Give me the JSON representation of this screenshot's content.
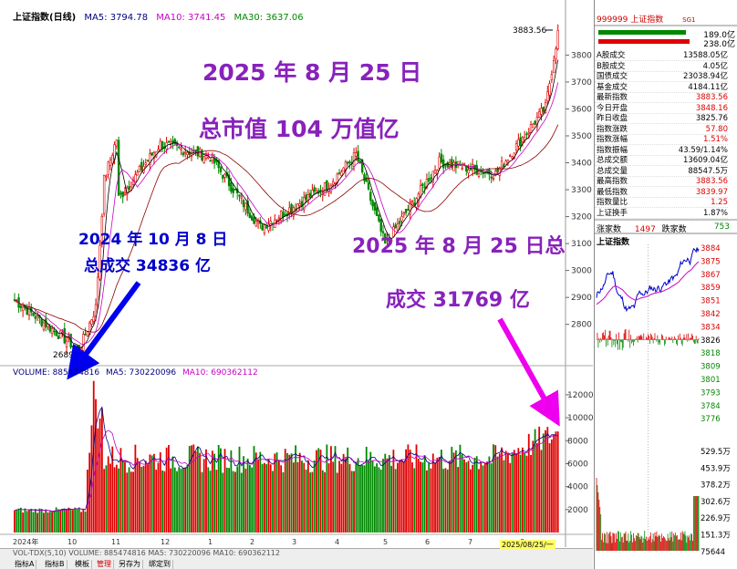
{
  "header": {
    "title": "上证指数(日线)",
    "ma5": "MA5: 3794.78",
    "ma10": "MA10: 3741.45",
    "ma30": "MA30: 3637.06",
    "peak_label": "3883.56",
    "low_label": "2689"
  },
  "volume_header": {
    "volume": "VOLUME: 885474816",
    "ma5": "MA5: 730220096",
    "ma10": "MA10: 690362112"
  },
  "annotations": {
    "date_title": "2025 年 8 月 25 日",
    "market_cap": "总市值 104 万值亿",
    "oct_date": "2024 年 10 月 8 日",
    "oct_volume": "总成交 34836 亿",
    "aug_line1": "2025 年 8 月 25 日总",
    "aug_line2": "成交 31769 亿"
  },
  "chart_data": {
    "type": "candlestick",
    "title": "上证指数(日线)",
    "price_axis": [
      2800,
      2900,
      3000,
      3100,
      3200,
      3300,
      3400,
      3500,
      3600,
      3700,
      3800
    ],
    "volume_axis": [
      2000,
      4000,
      6000,
      8000,
      10000,
      12000
    ],
    "x_ticks": [
      "2024年",
      "10",
      "11",
      "12",
      "1",
      "2",
      "3",
      "4",
      "5",
      "6",
      "7",
      "8"
    ],
    "ylim": [
      2650,
      3930
    ],
    "series_close_key_points": [
      {
        "date": "2024-09-13",
        "close": 2704
      },
      {
        "date": "2024-09-24",
        "close": 2863
      },
      {
        "date": "2024-09-30",
        "close": 3336
      },
      {
        "date": "2024-10-08",
        "close": 3489
      },
      {
        "date": "2024-10-09",
        "close": 3258
      },
      {
        "date": "2024-11-07",
        "close": 3470
      },
      {
        "date": "2024-12-10",
        "close": 3422
      },
      {
        "date": "2025-01-13",
        "close": 3160
      },
      {
        "date": "2025-02-28",
        "close": 3320
      },
      {
        "date": "2025-03-18",
        "close": 3430
      },
      {
        "date": "2025-04-07",
        "close": 3096
      },
      {
        "date": "2025-05-14",
        "close": 3403
      },
      {
        "date": "2025-06-20",
        "close": 3359
      },
      {
        "date": "2025-07-24",
        "close": 3605
      },
      {
        "date": "2025-08-25",
        "close": 3883
      }
    ],
    "volume_key_points": [
      {
        "date": "2024-10-08",
        "volume_yi": 34836
      },
      {
        "date": "2025-08-25",
        "volume_yi": 31769
      }
    ],
    "ma_lines": [
      "MA5",
      "MA10",
      "MA30"
    ]
  },
  "bottom_tabs": [
    "指标A",
    "指标B",
    "模板",
    "管理",
    "另存为",
    "绑定到"
  ],
  "vol_footer": "VOL-TDX(5,10)   VOLUME: 885474816  MA5: 730220096  MA10: 690362112",
  "date_tag": "2025/08/25/一",
  "sidepanel": {
    "code": "999999",
    "name": "上证指数",
    "tag": "SG1",
    "bar_vals": [
      "189.0亿",
      "238.0亿"
    ],
    "rows": [
      {
        "label": "A股成交",
        "value": "13588.05亿",
        "color": "black"
      },
      {
        "label": "B股成交",
        "value": "4.05亿",
        "color": "black"
      },
      {
        "label": "国债成交",
        "value": "23038.94亿",
        "color": "black"
      },
      {
        "label": "基金成交",
        "value": "4184.11亿",
        "color": "black"
      },
      {
        "label": "最新指数",
        "value": "3883.56",
        "color": "red"
      },
      {
        "label": "今日开盘",
        "value": "3848.16",
        "color": "red"
      },
      {
        "label": "昨日收盘",
        "value": "3825.76",
        "color": "black"
      },
      {
        "label": "指数涨跌",
        "value": "57.80",
        "color": "red"
      },
      {
        "label": "指数涨幅",
        "value": "1.51%",
        "color": "red"
      },
      {
        "label": "指数振幅",
        "value": "43.59/1.14%",
        "color": "black"
      },
      {
        "label": "总成交额",
        "value": "13609.04亿",
        "color": "black"
      },
      {
        "label": "总成交量",
        "value": "88547.5万",
        "color": "black"
      },
      {
        "label": "最高指数",
        "value": "3883.56",
        "color": "red"
      },
      {
        "label": "最低指数",
        "value": "3839.97",
        "color": "red"
      },
      {
        "label": "指数量比",
        "value": "1.25",
        "color": "red"
      },
      {
        "label": "上证换手",
        "value": "1.87%",
        "color": "black"
      }
    ],
    "rise_label": "涨家数",
    "rise": "1497",
    "fall_label": "跌家数",
    "fall": "753",
    "intraday_title": "上证指数",
    "intraday_axis": [
      "3884",
      "3875",
      "3867",
      "3859",
      "3851",
      "3842",
      "3834",
      "3826",
      "3818",
      "3809",
      "3801",
      "3793",
      "3784",
      "3776"
    ],
    "vol_axis": [
      "529.5万",
      "453.9万",
      "378.2万",
      "302.6万",
      "226.9万",
      "151.3万",
      "75644"
    ]
  },
  "colors": {
    "up": "#e00000",
    "down": "#008800",
    "ma5": "#000000",
    "ma10": "#0000ff",
    "ma30": "#c800c8",
    "annotation": "#8822bb",
    "annotation_blue": "#0000cc",
    "arrow_blue": "#0000ee",
    "arrow_magenta": "#ee00ee"
  }
}
